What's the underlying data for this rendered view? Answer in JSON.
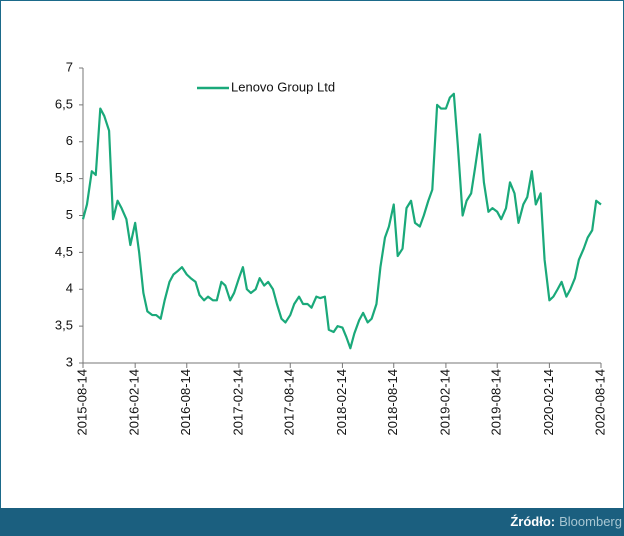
{
  "chart_data": {
    "type": "line",
    "x": [
      "2015-08-14",
      "2015-08-28",
      "2015-09-14",
      "2015-09-28",
      "2015-10-14",
      "2015-10-28",
      "2015-11-14",
      "2015-11-28",
      "2015-12-14",
      "2015-12-28",
      "2016-01-14",
      "2016-01-28",
      "2016-02-14",
      "2016-02-28",
      "2016-03-14",
      "2016-03-28",
      "2016-04-14",
      "2016-04-28",
      "2016-05-14",
      "2016-05-28",
      "2016-06-14",
      "2016-06-28",
      "2016-07-14",
      "2016-07-28",
      "2016-08-14",
      "2016-08-28",
      "2016-09-14",
      "2016-09-28",
      "2016-10-14",
      "2016-10-28",
      "2016-11-14",
      "2016-11-28",
      "2016-12-14",
      "2016-12-28",
      "2017-01-14",
      "2017-01-28",
      "2017-02-14",
      "2017-02-28",
      "2017-03-14",
      "2017-03-28",
      "2017-04-14",
      "2017-04-28",
      "2017-05-14",
      "2017-05-28",
      "2017-06-14",
      "2017-06-28",
      "2017-07-14",
      "2017-07-28",
      "2017-08-14",
      "2017-08-28",
      "2017-09-14",
      "2017-09-28",
      "2017-10-14",
      "2017-10-28",
      "2017-11-14",
      "2017-11-28",
      "2017-12-14",
      "2017-12-28",
      "2018-01-14",
      "2018-01-28",
      "2018-02-14",
      "2018-02-28",
      "2018-03-14",
      "2018-03-28",
      "2018-04-14",
      "2018-04-28",
      "2018-05-14",
      "2018-05-28",
      "2018-06-14",
      "2018-06-28",
      "2018-07-14",
      "2018-07-28",
      "2018-08-14",
      "2018-08-28",
      "2018-09-14",
      "2018-09-28",
      "2018-10-14",
      "2018-10-28",
      "2018-11-14",
      "2018-11-28",
      "2018-12-14",
      "2018-12-28",
      "2019-01-14",
      "2019-01-28",
      "2019-02-14",
      "2019-02-28",
      "2019-03-14",
      "2019-03-28",
      "2019-04-14",
      "2019-04-28",
      "2019-05-14",
      "2019-05-28",
      "2019-06-14",
      "2019-06-28",
      "2019-07-14",
      "2019-07-28",
      "2019-08-14",
      "2019-08-28",
      "2019-09-14",
      "2019-09-28",
      "2019-10-14",
      "2019-10-28",
      "2019-11-14",
      "2019-11-28",
      "2019-12-14",
      "2019-12-28",
      "2020-01-14",
      "2020-01-28",
      "2020-02-14",
      "2020-02-28",
      "2020-03-14",
      "2020-03-28",
      "2020-04-14",
      "2020-04-28",
      "2020-05-14",
      "2020-05-28",
      "2020-06-14",
      "2020-06-28",
      "2020-07-14",
      "2020-07-28",
      "2020-08-14"
    ],
    "series": [
      {
        "name": "Lenovo Group Ltd",
        "color": "#1aa97a",
        "values": [
          4.95,
          5.15,
          5.6,
          5.55,
          6.45,
          6.35,
          6.15,
          4.95,
          5.2,
          5.1,
          4.95,
          4.6,
          4.9,
          4.5,
          3.95,
          3.7,
          3.65,
          3.65,
          3.6,
          3.85,
          4.1,
          4.2,
          4.25,
          4.3,
          4.2,
          4.15,
          4.1,
          3.92,
          3.85,
          3.9,
          3.85,
          3.85,
          4.1,
          4.05,
          3.85,
          3.95,
          4.15,
          4.3,
          4.0,
          3.95,
          4.0,
          4.15,
          4.05,
          4.1,
          4.0,
          3.8,
          3.6,
          3.55,
          3.65,
          3.8,
          3.9,
          3.8,
          3.8,
          3.75,
          3.9,
          3.88,
          3.9,
          3.45,
          3.42,
          3.5,
          3.48,
          3.35,
          3.2,
          3.4,
          3.58,
          3.68,
          3.55,
          3.6,
          3.8,
          4.3,
          4.7,
          4.85,
          5.15,
          4.45,
          4.55,
          5.1,
          5.2,
          4.9,
          4.85,
          5.0,
          5.2,
          5.35,
          6.5,
          6.45,
          6.45,
          6.6,
          6.65,
          5.95,
          5.0,
          5.2,
          5.3,
          5.65,
          6.1,
          5.45,
          5.05,
          5.1,
          5.05,
          4.95,
          5.1,
          5.45,
          5.3,
          4.9,
          5.15,
          5.25,
          5.6,
          5.15,
          5.3,
          4.4,
          3.85,
          3.9,
          4.0,
          4.1,
          3.9,
          4.0,
          4.15,
          4.4,
          4.55,
          4.7,
          4.8,
          5.2,
          5.15
        ]
      }
    ],
    "xlim": [
      "2015-08-14",
      "2020-08-14"
    ],
    "xticks": [
      "2015-08-14",
      "2016-02-14",
      "2016-08-14",
      "2017-02-14",
      "2017-08-14",
      "2018-02-14",
      "2018-08-14",
      "2019-02-14",
      "2019-08-14",
      "2020-02-14",
      "2020-08-14"
    ],
    "ylim": [
      3,
      7
    ],
    "yticks": [
      3,
      {
        "value": 3.5,
        "label": "3,5"
      },
      4,
      {
        "value": 4.5,
        "label": "4,5"
      },
      5,
      {
        "value": 5.5,
        "label": "5,5"
      },
      6,
      {
        "value": 6.5,
        "label": "6,5"
      },
      7
    ],
    "legend": "top-left",
    "source_label": "Źródło:",
    "source": "Bloomberg"
  }
}
